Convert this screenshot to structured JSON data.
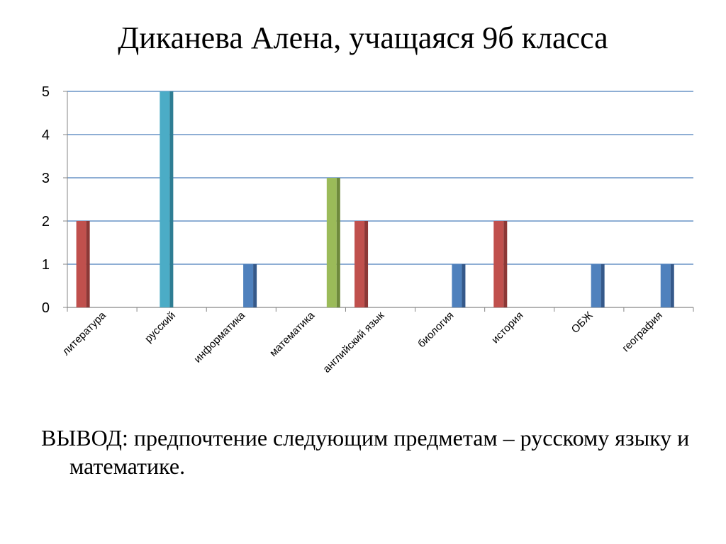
{
  "slide": {
    "title": "Диканева Алена, учащаяся 9б  класса",
    "conclusion_label": "ВЫВОД",
    "conclusion_text": ": предпочтение следующим предметам – русскому языку и математике."
  },
  "chart_data": {
    "type": "bar",
    "title": "",
    "xlabel": "",
    "ylabel": "",
    "ylim": [
      0,
      5
    ],
    "yticks": [
      0,
      1,
      2,
      3,
      4,
      5
    ],
    "grid": true,
    "legend": "none",
    "categories": [
      "литература",
      "русский",
      "информатика",
      "математика",
      "английский язык",
      "биология",
      "история",
      "ОБЖ",
      "география"
    ],
    "series": [
      {
        "color": "#c0504d",
        "values": [
          2,
          null,
          null,
          null,
          2,
          null,
          2,
          null,
          null
        ]
      },
      {
        "color": "#4bacc6",
        "values": [
          null,
          5,
          null,
          null,
          null,
          null,
          null,
          null,
          null
        ]
      },
      {
        "color": "#4f81bd",
        "values": [
          null,
          null,
          1,
          null,
          null,
          1,
          null,
          1,
          1
        ]
      },
      {
        "color": "#9bbb59",
        "values": [
          null,
          null,
          null,
          3,
          null,
          null,
          null,
          null,
          null
        ]
      }
    ]
  }
}
